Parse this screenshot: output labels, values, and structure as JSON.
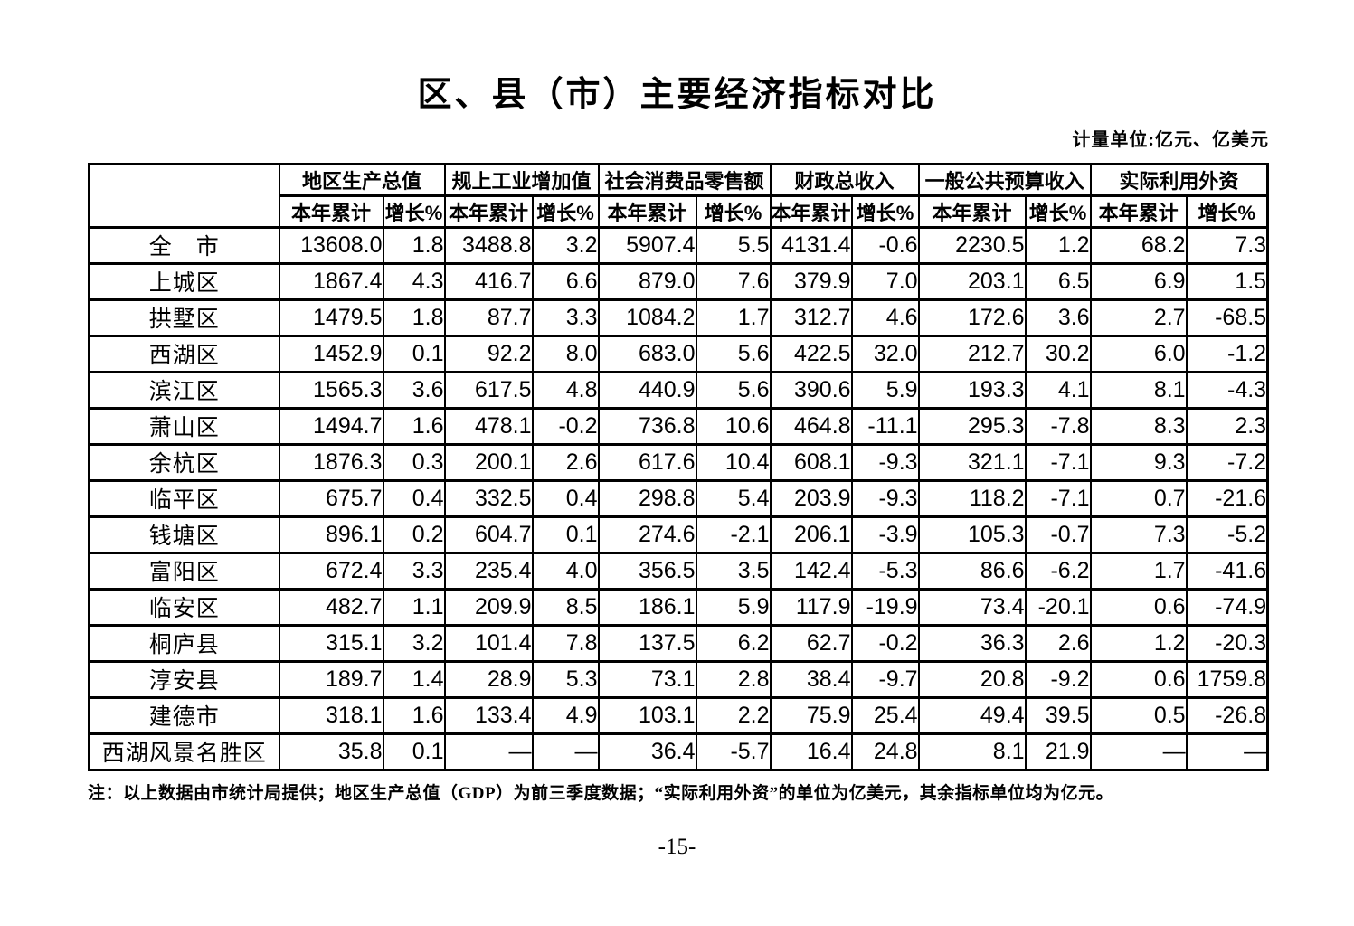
{
  "page": {
    "title": "区、县（市）主要经济指标对比",
    "unit_note": "计量单位:亿元、亿美元",
    "footnote": "注：以上数据由市统计局提供；地区生产总值（GDP）为前三季度数据；“实际利用外资”的单位为亿美元，其余指标单位均为亿元。",
    "page_number": "-15-"
  },
  "table": {
    "group_headers": [
      "地区生产总值",
      "规上工业增加值",
      "社会消费品零售额",
      "财政总收入",
      "一般公共预算收入",
      "实际利用外资"
    ],
    "sub_headers": [
      "本年累计",
      "增长%"
    ],
    "rows": [
      {
        "region": "全　市",
        "values": [
          "13608.0",
          "1.8",
          "3488.8",
          "3.2",
          "5907.4",
          "5.5",
          "4131.4",
          "-0.6",
          "2230.5",
          "1.2",
          "68.2",
          "7.3"
        ]
      },
      {
        "region": "上城区",
        "values": [
          "1867.4",
          "4.3",
          "416.7",
          "6.6",
          "879.0",
          "7.6",
          "379.9",
          "7.0",
          "203.1",
          "6.5",
          "6.9",
          "1.5"
        ]
      },
      {
        "region": "拱墅区",
        "values": [
          "1479.5",
          "1.8",
          "87.7",
          "3.3",
          "1084.2",
          "1.7",
          "312.7",
          "4.6",
          "172.6",
          "3.6",
          "2.7",
          "-68.5"
        ]
      },
      {
        "region": "西湖区",
        "values": [
          "1452.9",
          "0.1",
          "92.2",
          "8.0",
          "683.0",
          "5.6",
          "422.5",
          "32.0",
          "212.7",
          "30.2",
          "6.0",
          "-1.2"
        ]
      },
      {
        "region": "滨江区",
        "values": [
          "1565.3",
          "3.6",
          "617.5",
          "4.8",
          "440.9",
          "5.6",
          "390.6",
          "5.9",
          "193.3",
          "4.1",
          "8.1",
          "-4.3"
        ]
      },
      {
        "region": "萧山区",
        "values": [
          "1494.7",
          "1.6",
          "478.1",
          "-0.2",
          "736.8",
          "10.6",
          "464.8",
          "-11.1",
          "295.3",
          "-7.8",
          "8.3",
          "2.3"
        ]
      },
      {
        "region": "余杭区",
        "values": [
          "1876.3",
          "0.3",
          "200.1",
          "2.6",
          "617.6",
          "10.4",
          "608.1",
          "-9.3",
          "321.1",
          "-7.1",
          "9.3",
          "-7.2"
        ]
      },
      {
        "region": "临平区",
        "values": [
          "675.7",
          "0.4",
          "332.5",
          "0.4",
          "298.8",
          "5.4",
          "203.9",
          "-9.3",
          "118.2",
          "-7.1",
          "0.7",
          "-21.6"
        ]
      },
      {
        "region": "钱塘区",
        "values": [
          "896.1",
          "0.2",
          "604.7",
          "0.1",
          "274.6",
          "-2.1",
          "206.1",
          "-3.9",
          "105.3",
          "-0.7",
          "7.3",
          "-5.2"
        ]
      },
      {
        "region": "富阳区",
        "values": [
          "672.4",
          "3.3",
          "235.4",
          "4.0",
          "356.5",
          "3.5",
          "142.4",
          "-5.3",
          "86.6",
          "-6.2",
          "1.7",
          "-41.6"
        ]
      },
      {
        "region": "临安区",
        "values": [
          "482.7",
          "1.1",
          "209.9",
          "8.5",
          "186.1",
          "5.9",
          "117.9",
          "-19.9",
          "73.4",
          "-20.1",
          "0.6",
          "-74.9"
        ]
      },
      {
        "region": "桐庐县",
        "values": [
          "315.1",
          "3.2",
          "101.4",
          "7.8",
          "137.5",
          "6.2",
          "62.7",
          "-0.2",
          "36.3",
          "2.6",
          "1.2",
          "-20.3"
        ]
      },
      {
        "region": "淳安县",
        "values": [
          "189.7",
          "1.4",
          "28.9",
          "5.3",
          "73.1",
          "2.8",
          "38.4",
          "-9.7",
          "20.8",
          "-9.2",
          "0.6",
          "1759.8"
        ]
      },
      {
        "region": "建德市",
        "values": [
          "318.1",
          "1.6",
          "133.4",
          "4.9",
          "103.1",
          "2.2",
          "75.9",
          "25.4",
          "49.4",
          "39.5",
          "0.5",
          "-26.8"
        ]
      },
      {
        "region": "西湖风景名胜区",
        "values": [
          "35.8",
          "0.1",
          "—",
          "—",
          "36.4",
          "-5.7",
          "16.4",
          "24.8",
          "8.1",
          "21.9",
          "—",
          "—"
        ]
      }
    ]
  }
}
